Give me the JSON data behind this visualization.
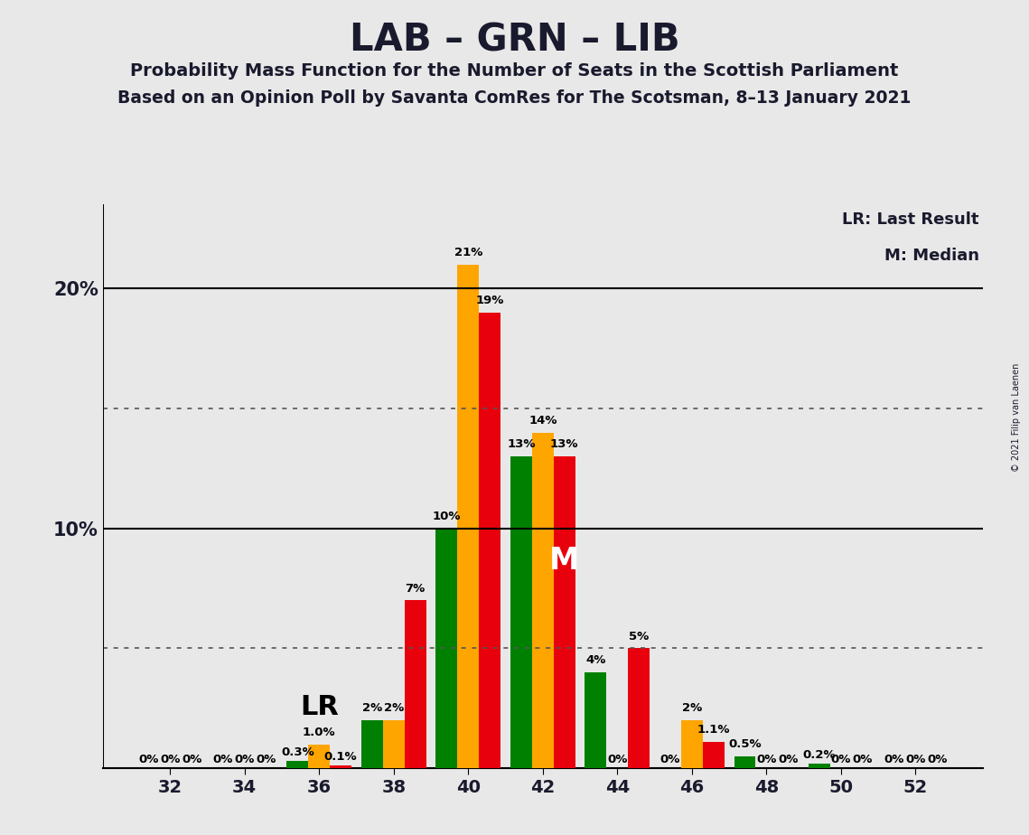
{
  "title": "LAB – GRN – LIB",
  "subtitle1": "Probability Mass Function for the Number of Seats in the Scottish Parliament",
  "subtitle2": "Based on an Opinion Poll by Savanta ComRes for The Scotsman, 8–13 January 2021",
  "copyright": "© 2021 Filip van Laenen",
  "seats": [
    32,
    34,
    36,
    38,
    40,
    42,
    44,
    46,
    48,
    50,
    52
  ],
  "lab_values": [
    0.0,
    0.0,
    0.1,
    7.0,
    19.0,
    13.0,
    5.0,
    1.1,
    0.0,
    0.0,
    0.0
  ],
  "grn_values": [
    0.0,
    0.0,
    0.3,
    2.0,
    10.0,
    13.0,
    4.0,
    0.0,
    0.5,
    0.2,
    0.0
  ],
  "lib_values": [
    0.0,
    0.0,
    1.0,
    2.0,
    21.0,
    14.0,
    0.0,
    2.0,
    0.0,
    0.0,
    0.0
  ],
  "lab_labels": [
    "0%",
    "0%",
    "0.1%",
    "7%",
    "19%",
    "13%",
    "5%",
    "1.1%",
    "0%",
    "0%",
    "0%"
  ],
  "grn_labels": [
    "0%",
    "0%",
    "0.3%",
    "2%",
    "10%",
    "13%",
    "4%",
    "0%",
    "0.5%",
    "0.2%",
    "0%"
  ],
  "lib_labels": [
    "0%",
    "0%",
    "1.0%",
    "2%",
    "21%",
    "14%",
    "0%",
    "2%",
    "0%",
    "0%",
    "0%"
  ],
  "lab_color": "#e8000d",
  "grn_color": "#008000",
  "lib_color": "#ffa500",
  "background_color": "#e8e8e8",
  "median_label": "M",
  "lr_label": "LR",
  "ylim": [
    0,
    23.5
  ],
  "dotted_lines": [
    5.0,
    15.0
  ],
  "solid_lines": [
    10.0,
    20.0
  ],
  "legend_lr": "LR: Last Result",
  "legend_m": "M: Median",
  "bar_width": 0.58,
  "xlim_left": 30.2,
  "xlim_right": 53.8
}
